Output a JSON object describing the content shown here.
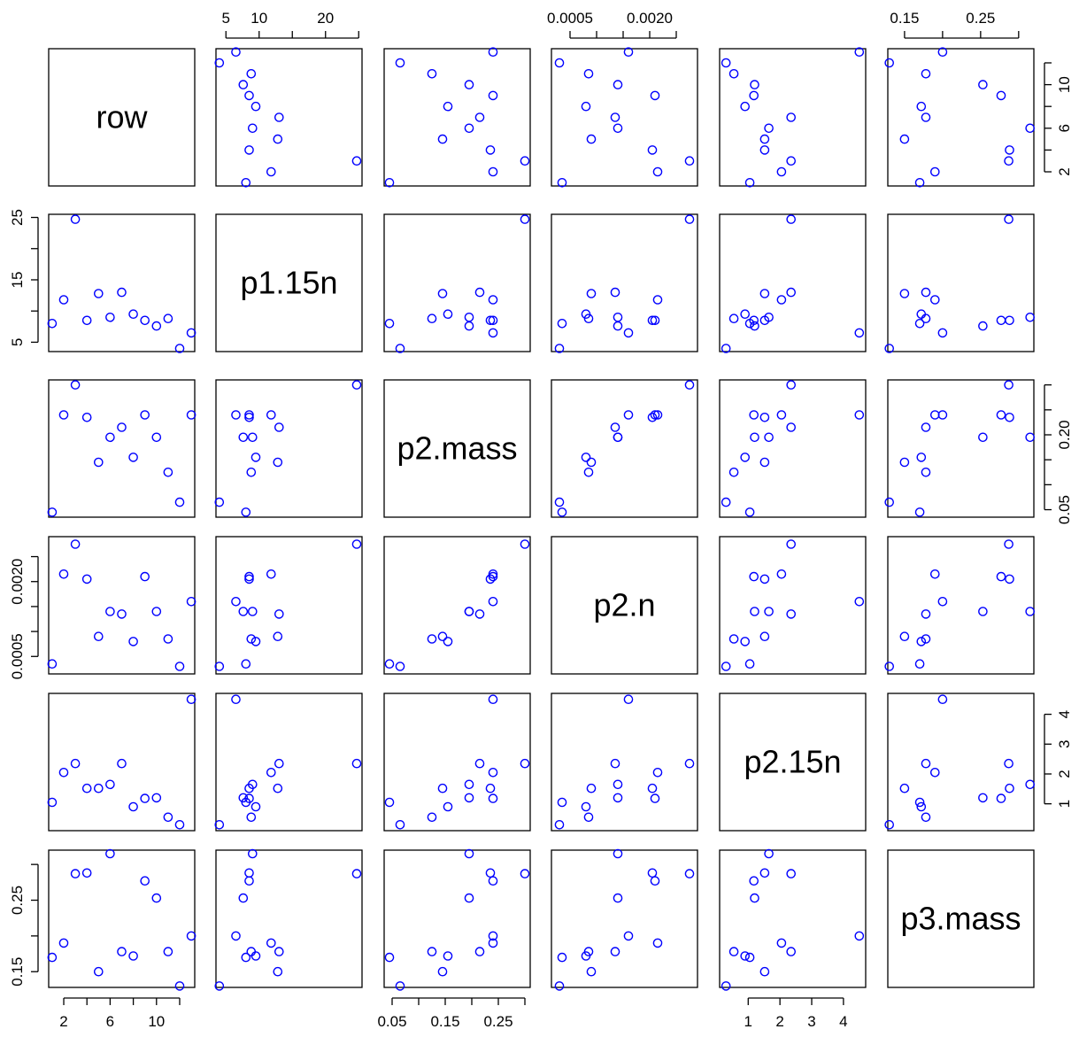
{
  "chart_data": {
    "type": "scatter",
    "layout": "scatterplot-matrix",
    "point_color": "#0000ff",
    "variables": [
      {
        "name": "row",
        "lim": [
          0.7,
          13.3
        ],
        "ticks": [
          2,
          4,
          6,
          8,
          10,
          12
        ],
        "tick_labels": [
          "2",
          "6",
          "10"
        ],
        "label_ticks": [
          2,
          6,
          10
        ]
      },
      {
        "name": "p1.15n",
        "lim": [
          3.5,
          25.5
        ],
        "ticks": [
          5,
          10,
          15,
          20,
          25
        ],
        "tick_labels_top": [
          "5",
          "10",
          "20"
        ],
        "label_ticks_top": [
          5,
          10,
          20
        ],
        "tick_labels_left": [
          "5",
          "15",
          "25"
        ],
        "label_ticks_left": [
          5,
          15,
          25
        ]
      },
      {
        "name": "p2.mass",
        "lim": [
          0.035,
          0.31
        ],
        "ticks": [
          0.05,
          0.1,
          0.15,
          0.2,
          0.25,
          0.3
        ],
        "tick_labels_bottom": [
          "0.05",
          "0.15",
          "0.25"
        ],
        "label_ticks_bottom": [
          0.05,
          0.15,
          0.25
        ],
        "tick_labels_right": [
          "0.05",
          "0.20"
        ],
        "label_ticks_right": [
          0.05,
          0.2
        ]
      },
      {
        "name": "p2.n",
        "lim": [
          0.00015,
          0.0029
        ],
        "ticks": [
          0.0005,
          0.001,
          0.0015,
          0.002,
          0.0025
        ],
        "tick_labels_top": [
          "0.0005",
          "0.0020"
        ],
        "label_ticks_top": [
          0.0005,
          0.002
        ],
        "tick_labels_left": [
          "0.0005",
          "0.0020"
        ],
        "label_ticks_left": [
          0.0005,
          0.002
        ]
      },
      {
        "name": "p2.15n",
        "lim": [
          0.1,
          4.7
        ],
        "ticks": [
          1,
          2,
          3,
          4
        ],
        "tick_labels": [
          "1",
          "2",
          "3",
          "4"
        ],
        "label_ticks": [
          1,
          2,
          3,
          4
        ]
      },
      {
        "name": "p3.mass",
        "lim": [
          0.128,
          0.32
        ],
        "ticks": [
          0.15,
          0.2,
          0.25,
          0.3
        ],
        "tick_labels_top": [
          "0.15",
          "0.25"
        ],
        "label_ticks_top": [
          0.15,
          0.25
        ],
        "tick_labels_left": [
          "0.15",
          "0.25"
        ],
        "label_ticks_left": [
          0.15,
          0.25
        ]
      }
    ],
    "observations": [
      {
        "row": 1,
        "p1.15n": 8.0,
        "p2.mass": 0.045,
        "p2.n": 0.00035,
        "p2.15n": 1.05,
        "p3.mass": 0.17
      },
      {
        "row": 2,
        "p1.15n": 11.8,
        "p2.mass": 0.24,
        "p2.n": 0.00215,
        "p2.15n": 2.05,
        "p3.mass": 0.19
      },
      {
        "row": 3,
        "p1.15n": 24.7,
        "p2.mass": 0.3,
        "p2.n": 0.00275,
        "p2.15n": 2.35,
        "p3.mass": 0.287
      },
      {
        "row": 4,
        "p1.15n": 8.5,
        "p2.mass": 0.235,
        "p2.n": 0.00205,
        "p2.15n": 1.52,
        "p3.mass": 0.288
      },
      {
        "row": 5,
        "p1.15n": 12.8,
        "p2.mass": 0.145,
        "p2.n": 0.0009,
        "p2.15n": 1.52,
        "p3.mass": 0.15
      },
      {
        "row": 6,
        "p1.15n": 9.0,
        "p2.mass": 0.195,
        "p2.n": 0.0014,
        "p2.15n": 1.65,
        "p3.mass": 0.315
      },
      {
        "row": 7,
        "p1.15n": 13.0,
        "p2.mass": 0.215,
        "p2.n": 0.00135,
        "p2.15n": 2.35,
        "p3.mass": 0.178
      },
      {
        "row": 8,
        "p1.15n": 9.5,
        "p2.mass": 0.155,
        "p2.n": 0.0008,
        "p2.15n": 0.9,
        "p3.mass": 0.172
      },
      {
        "row": 9,
        "p1.15n": 8.5,
        "p2.mass": 0.24,
        "p2.n": 0.0021,
        "p2.15n": 1.18,
        "p3.mass": 0.277
      },
      {
        "row": 10,
        "p1.15n": 7.6,
        "p2.mass": 0.195,
        "p2.n": 0.0014,
        "p2.15n": 1.2,
        "p3.mass": 0.253
      },
      {
        "row": 11,
        "p1.15n": 8.8,
        "p2.mass": 0.125,
        "p2.n": 0.00085,
        "p2.15n": 0.55,
        "p3.mass": 0.178
      },
      {
        "row": 12,
        "p1.15n": 4.0,
        "p2.mass": 0.065,
        "p2.n": 0.0003,
        "p2.15n": 0.3,
        "p3.mass": 0.13
      },
      {
        "row": 13,
        "p1.15n": 6.5,
        "p2.mass": 0.24,
        "p2.n": 0.0016,
        "p2.15n": 4.5,
        "p3.mass": 0.2
      }
    ]
  }
}
